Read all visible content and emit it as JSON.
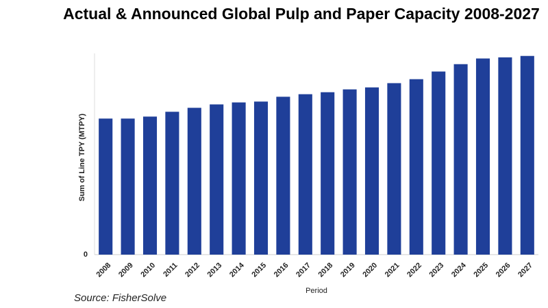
{
  "chart_data": {
    "type": "bar",
    "title": "Actual & Announced Global Pulp and Paper Capacity 2008-2027",
    "y_label": "Sum of Line TPY (MTPY)",
    "x_label": "Period",
    "source": "Source: FisherSolve",
    "categories": [
      "2008",
      "2009",
      "2010",
      "2011",
      "2012",
      "2013",
      "2014",
      "2015",
      "2016",
      "2017",
      "2018",
      "2019",
      "2020",
      "2021",
      "2022",
      "2023",
      "2024",
      "2025",
      "2026",
      "2027"
    ],
    "values": [
      4.8,
      4.8,
      4.87,
      5.04,
      5.18,
      5.3,
      5.37,
      5.4,
      5.57,
      5.66,
      5.73,
      5.83,
      5.9,
      6.05,
      6.19,
      6.46,
      6.72,
      6.92,
      6.96,
      7.01
    ],
    "color": "#1f3f99",
    "ylim": [
      0,
      7.1
    ],
    "yticks": [
      0
    ],
    "grid": true
  }
}
